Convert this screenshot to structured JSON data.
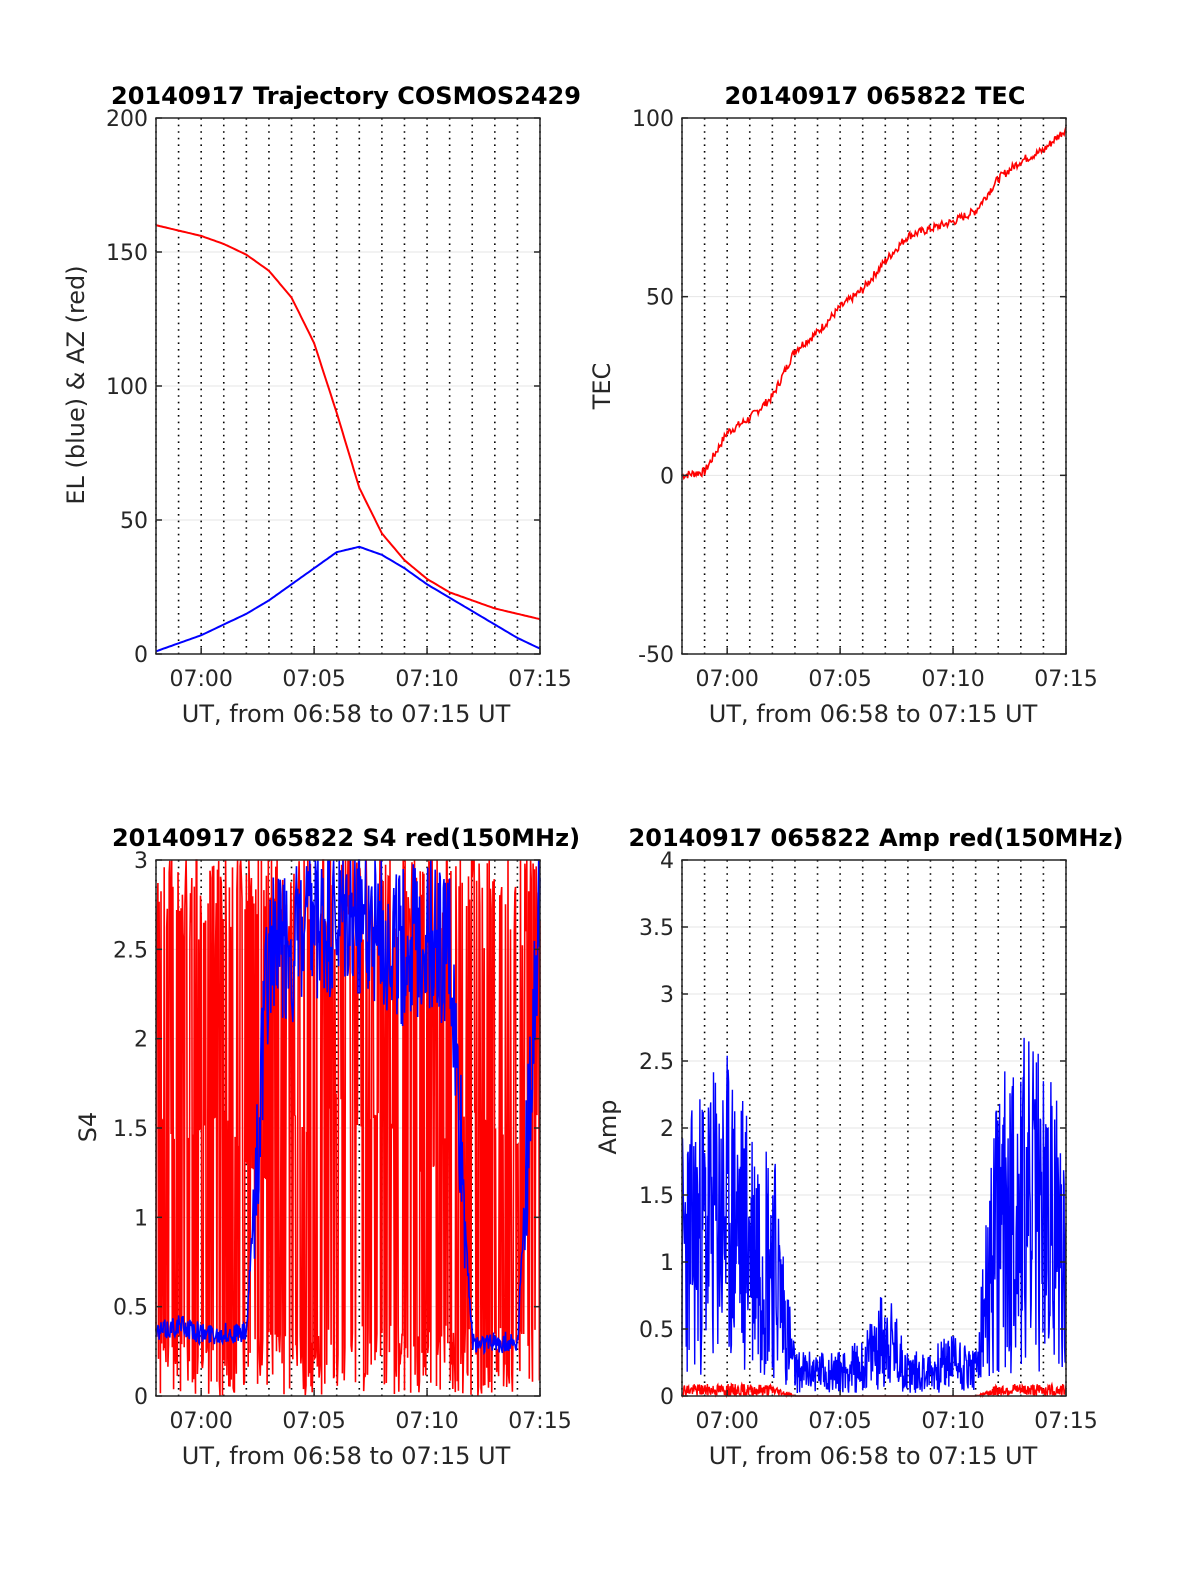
{
  "chart_data": [
    {
      "type": "line",
      "title": "20140917 Trajectory COSMOS2429",
      "xlabel": "UT, from 06:58 to 07:15 UT",
      "ylabel": "EL (blue) & AZ (red)",
      "xlim": [
        "06:58",
        "07:15"
      ],
      "ylim": [
        0,
        200
      ],
      "xticks": [
        "07:00",
        "07:05",
        "07:10",
        "07:15"
      ],
      "yticks": [
        "0",
        "50",
        "100",
        "150",
        "200"
      ],
      "grid": "vertical dotted lines every minute, horizontal light grid at y ticks",
      "series": [
        {
          "name": "AZ (red)",
          "color": "#ff0000",
          "x": [
            "06:58",
            "06:59",
            "07:00",
            "07:01",
            "07:02",
            "07:03",
            "07:04",
            "07:05",
            "07:06",
            "07:07",
            "07:08",
            "07:09",
            "07:10",
            "07:11",
            "07:12",
            "07:13",
            "07:14",
            "07:15"
          ],
          "values": [
            160,
            158,
            156,
            153,
            149,
            143,
            133,
            116,
            90,
            62,
            45,
            35,
            28,
            23,
            20,
            17,
            15,
            13
          ]
        },
        {
          "name": "EL (blue)",
          "color": "#0000ff",
          "x": [
            "06:58",
            "06:59",
            "07:00",
            "07:01",
            "07:02",
            "07:03",
            "07:04",
            "07:05",
            "07:06",
            "07:07",
            "07:08",
            "07:09",
            "07:10",
            "07:11",
            "07:12",
            "07:13",
            "07:14",
            "07:15"
          ],
          "values": [
            1,
            4,
            7,
            11,
            15,
            20,
            26,
            32,
            38,
            40,
            37,
            32,
            26,
            21,
            16,
            11,
            6,
            2
          ]
        }
      ]
    },
    {
      "type": "line",
      "title": "20140917 065822 TEC",
      "xlabel": "UT, from 06:58 to 07:15 UT",
      "ylabel": "TEC",
      "xlim": [
        "06:58",
        "07:15"
      ],
      "ylim": [
        -50,
        100
      ],
      "xticks": [
        "07:00",
        "07:05",
        "07:10",
        "07:15"
      ],
      "yticks": [
        "-50",
        "0",
        "50",
        "100"
      ],
      "grid": "vertical dotted lines every minute, horizontal light grid at y ticks",
      "series": [
        {
          "name": "TEC",
          "color": "#ff0000",
          "x": [
            "06:58",
            "06:59",
            "07:00",
            "07:01",
            "07:02",
            "07:03",
            "07:04",
            "07:05",
            "07:06",
            "07:07",
            "07:08",
            "07:09",
            "07:10",
            "07:11",
            "07:12",
            "07:13",
            "07:14",
            "07:15"
          ],
          "values": [
            0,
            1,
            12,
            16,
            22,
            35,
            40,
            47,
            52,
            60,
            67,
            69,
            71,
            74,
            83,
            88,
            91,
            97
          ]
        }
      ]
    },
    {
      "type": "line",
      "title": "20140917 065822 S4 red(150MHz)",
      "xlabel": "UT, from 06:58 to 07:15 UT",
      "ylabel": "S4",
      "xlim": [
        "06:58",
        "07:15"
      ],
      "ylim": [
        0,
        3
      ],
      "xticks": [
        "07:00",
        "07:05",
        "07:10",
        "07:15"
      ],
      "yticks": [
        "0",
        "0.5",
        "1",
        "1.5",
        "2",
        "2.5",
        "3"
      ],
      "grid": "vertical dotted lines every minute, horizontal light grid at y ticks",
      "series": [
        {
          "name": "S4 red (150MHz)",
          "color": "#ff0000",
          "x": [
            "06:58",
            "06:59",
            "07:00",
            "07:01",
            "07:02",
            "07:03",
            "07:04",
            "07:05",
            "07:06",
            "07:07",
            "07:08",
            "07:09",
            "07:10",
            "07:11",
            "07:12",
            "07:13",
            "07:14",
            "07:15"
          ],
          "values": [
            1.6,
            1.4,
            1.5,
            1.6,
            1.3,
            1.2,
            1.6,
            1.4,
            1.7,
            1.5,
            1.6,
            1.4,
            1.2,
            1.5,
            1.6,
            1.5,
            1.4,
            1.6
          ]
        },
        {
          "name": "S4 blue",
          "color": "#0000ff",
          "x": [
            "06:58",
            "06:59",
            "07:00",
            "07:01",
            "07:02",
            "07:03",
            "07:04",
            "07:05",
            "07:06",
            "07:07",
            "07:08",
            "07:09",
            "07:10",
            "07:11",
            "07:12",
            "07:13",
            "07:14",
            "07:15"
          ],
          "values": [
            0.35,
            0.4,
            0.35,
            0.35,
            0.35,
            2.5,
            2.5,
            2.6,
            2.6,
            2.7,
            2.6,
            2.5,
            2.6,
            2.5,
            0.3,
            0.3,
            0.3,
            2.8
          ]
        }
      ]
    },
    {
      "type": "line",
      "title": "20140917 065822 Amp red(150MHz)",
      "xlabel": "UT, from 06:58 to 07:15 UT",
      "ylabel": "Amp",
      "xlim": [
        "06:58",
        "07:15"
      ],
      "ylim": [
        0,
        4
      ],
      "xticks": [
        "07:00",
        "07:05",
        "07:10",
        "07:15"
      ],
      "yticks": [
        "0",
        "0.5",
        "1",
        "1.5",
        "2",
        "2.5",
        "3",
        "3.5",
        "4"
      ],
      "grid": "vertical dotted lines every minute, horizontal light grid at y ticks",
      "series": [
        {
          "name": "Amp blue",
          "color": "#0000ff",
          "x": [
            "06:58",
            "06:59",
            "07:00",
            "07:01",
            "07:02",
            "07:03",
            "07:04",
            "07:05",
            "07:06",
            "07:07",
            "07:08",
            "07:09",
            "07:10",
            "07:11",
            "07:12",
            "07:13",
            "07:14",
            "07:15"
          ],
          "values": [
            1.2,
            1.4,
            1.5,
            1.3,
            1.2,
            0.2,
            0.2,
            0.2,
            0.25,
            0.5,
            0.2,
            0.2,
            0.3,
            0.2,
            1.4,
            1.6,
            1.5,
            1.2
          ]
        },
        {
          "name": "Amp red (150MHz)",
          "color": "#ff0000",
          "x": [
            "06:58",
            "06:59",
            "07:00",
            "07:01",
            "07:02",
            "07:03",
            "07:04",
            "07:05",
            "07:06",
            "07:07",
            "07:08",
            "07:09",
            "07:10",
            "07:11",
            "07:12",
            "07:13",
            "07:14",
            "07:15"
          ],
          "values": [
            0.05,
            0.05,
            0.05,
            0.05,
            0.05,
            0,
            0,
            0,
            0,
            0,
            0,
            0,
            0,
            0,
            0.05,
            0.05,
            0.05,
            0.05
          ]
        }
      ]
    }
  ]
}
